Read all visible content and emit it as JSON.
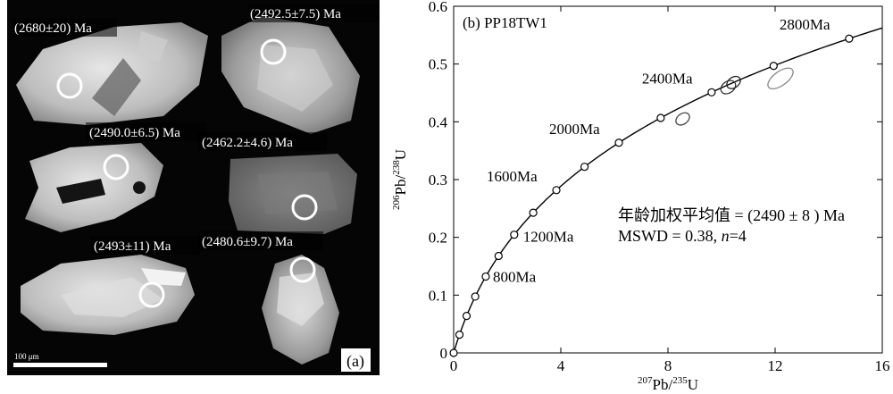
{
  "panel_a": {
    "label": "(a)",
    "scale_bar_label": "100 μm",
    "spot_ages": [
      "(2680±20) Ma",
      "(2492.5±7.5) Ma",
      "(2490.0±6.5) Ma",
      "(2462.2±4.6) Ma",
      "(2493±11) Ma",
      "(2480.6±9.7) Ma"
    ]
  },
  "chart_data": {
    "type": "scatter",
    "panel_label": "(b) PP18TW1",
    "xlabel": {
      "sup1": "207",
      "base1": "Pb/",
      "sup2": "235",
      "base2": "U"
    },
    "ylabel": {
      "sup1": "206",
      "base1": "Pb/",
      "sup2": "238",
      "base2": "U"
    },
    "xlim": [
      0,
      16
    ],
    "ylim": [
      0,
      0.6
    ],
    "xticks": [
      0,
      4,
      8,
      12,
      16
    ],
    "yticks": [
      0,
      0.1,
      0.2,
      0.3,
      0.4,
      0.5,
      0.6
    ],
    "xtick_labels": [
      "0",
      "4",
      "8",
      "12",
      "16"
    ],
    "ytick_labels": [
      "0",
      "0.1",
      "0.2",
      "0.3",
      "0.4",
      "0.5",
      "0.6"
    ],
    "concordia": {
      "age_step_ma": 200,
      "age_max_ma": 2800,
      "labeled_ages": [
        {
          "age": 800,
          "text": "800Ma"
        },
        {
          "age": 1200,
          "text": "1200Ma"
        },
        {
          "age": 1600,
          "text": "1600Ma"
        },
        {
          "age": 2000,
          "text": "2000Ma"
        },
        {
          "age": 2400,
          "text": "2400Ma"
        },
        {
          "age": 2800,
          "text": "2800Ma"
        }
      ]
    },
    "ellipses": [
      {
        "x": 8.55,
        "y": 0.405,
        "rx": 0.28,
        "ry": 0.009,
        "color": "#444444"
      },
      {
        "x": 10.25,
        "y": 0.46,
        "rx": 0.3,
        "ry": 0.01,
        "color": "#333333"
      },
      {
        "x": 10.45,
        "y": 0.468,
        "rx": 0.28,
        "ry": 0.009,
        "color": "#222222"
      },
      {
        "x": 12.2,
        "y": 0.475,
        "rx": 0.55,
        "ry": 0.012,
        "color": "#888888"
      }
    ],
    "annotation_lines": [
      "年龄加权平均值 = (2490 ± 8 ) Ma",
      "MSWD = 0.38, n=4"
    ]
  }
}
